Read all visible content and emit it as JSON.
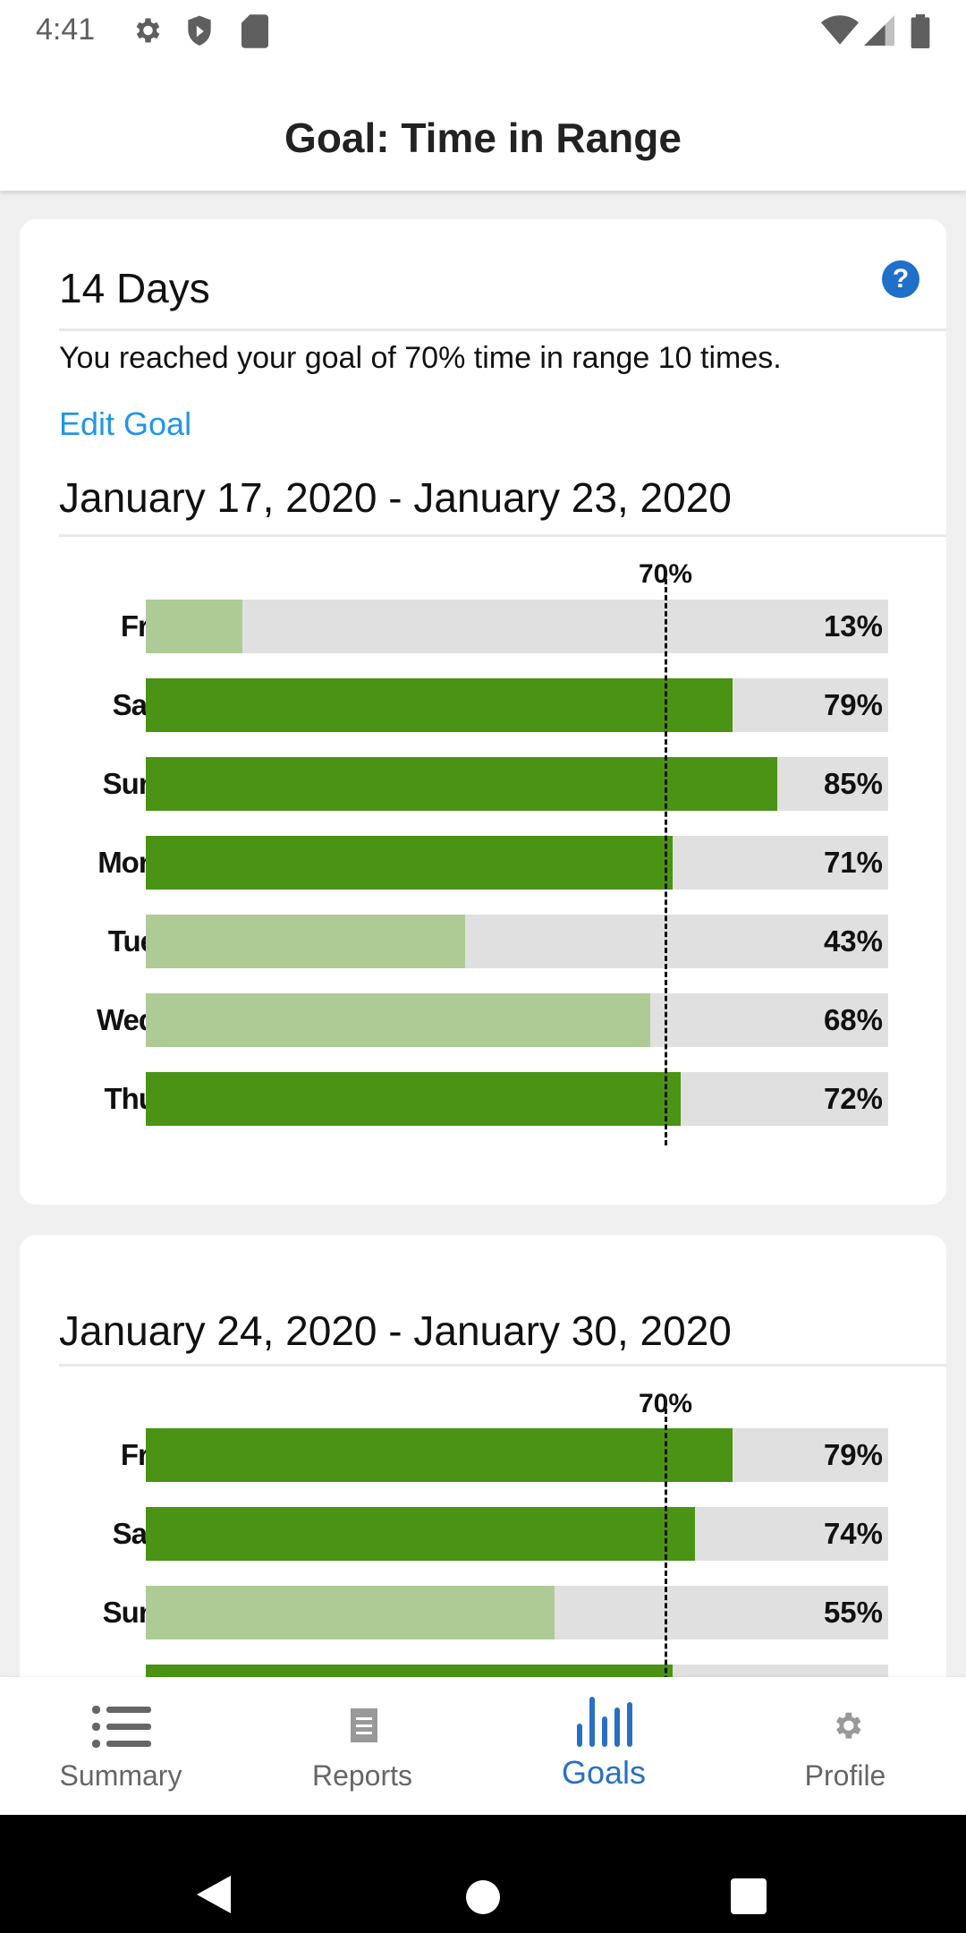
{
  "status_bar": {
    "time": "4:41",
    "icons": [
      "gear-icon",
      "shield-play-icon",
      "sd-card-icon",
      "wifi-icon",
      "signal-icon",
      "battery-icon"
    ]
  },
  "header": {
    "title": "Goal: Time in Range"
  },
  "summary": {
    "title": "14 Days",
    "help_icon": "question-circle-icon",
    "help_glyph": "?",
    "message": "You reached your goal of 70% time in range 10 times.",
    "edit_goal": "Edit Goal"
  },
  "colors": {
    "met": "#4a9315",
    "not_met": "#aecb96",
    "track": "#e0e0e0",
    "link": "#2196e3",
    "active_tab": "#2a6fc4"
  },
  "chart_data": [
    {
      "type": "bar",
      "orientation": "horizontal",
      "title": "January 17, 2020 - January 23, 2020",
      "xlim": [
        0,
        100
      ],
      "goal": 70,
      "goal_label": "70%",
      "categories": [
        "Fri",
        "Sat",
        "Sun",
        "Mon",
        "Tue",
        "Wed",
        "Thu"
      ],
      "values": [
        13,
        79,
        85,
        71,
        43,
        68,
        72
      ],
      "labels": [
        "13%",
        "79%",
        "85%",
        "71%",
        "43%",
        "68%",
        "72%"
      ]
    },
    {
      "type": "bar",
      "orientation": "horizontal",
      "title": "January 24, 2020 - January 30, 2020",
      "xlim": [
        0,
        100
      ],
      "goal": 70,
      "goal_label": "70%",
      "categories": [
        "Fri",
        "Sat",
        "Sun",
        ""
      ],
      "values": [
        79,
        74,
        55,
        71
      ],
      "labels": [
        "79%",
        "74%",
        "55%",
        ""
      ]
    }
  ],
  "bottom_nav": {
    "tabs": [
      {
        "label": "Summary",
        "icon": "list-icon",
        "active": false
      },
      {
        "label": "Reports",
        "icon": "document-icon",
        "active": false
      },
      {
        "label": "Goals",
        "icon": "bar-chart-icon",
        "active": true
      },
      {
        "label": "Profile",
        "icon": "gear-icon",
        "active": false
      }
    ]
  }
}
